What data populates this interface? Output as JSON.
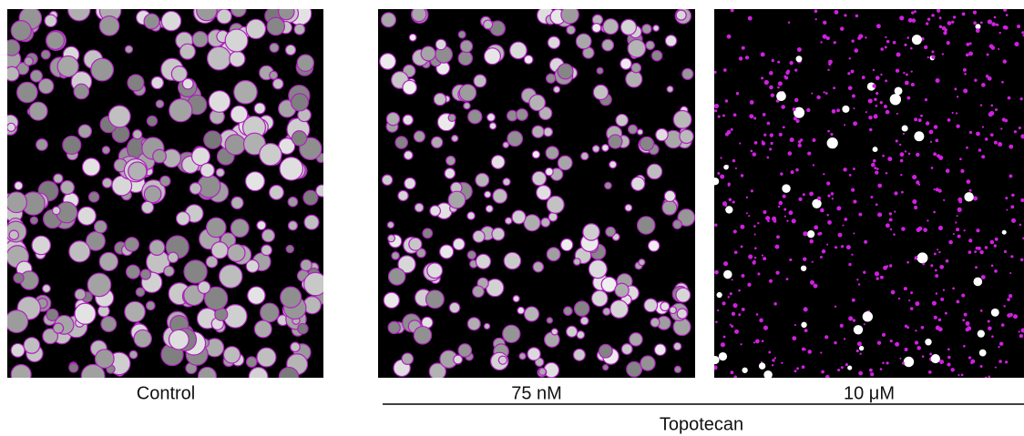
{
  "panels": [
    {
      "label": "Control"
    },
    {
      "label": "75 nM"
    },
    {
      "label": "10 μM"
    }
  ],
  "group": {
    "label": "Topotecan"
  }
}
